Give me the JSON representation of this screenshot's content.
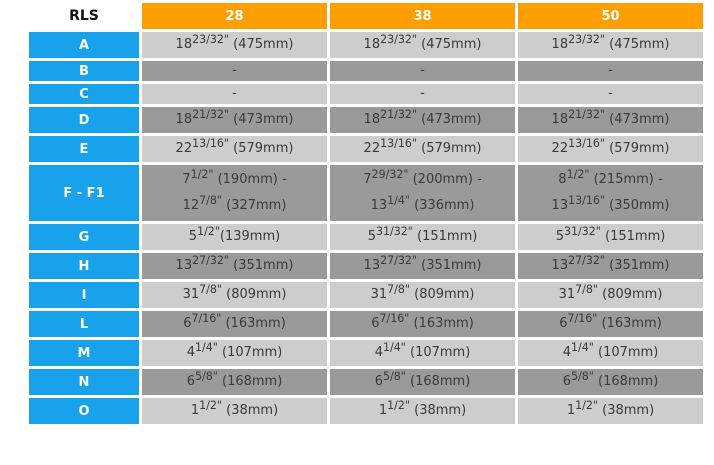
{
  "colors": {
    "header_orange": "#FF9E00",
    "label_blue": "#18A2EC",
    "row_light": "#CDCDCD",
    "row_dark": "#9A9A9A",
    "cell_text": "#3A3A3A"
  },
  "table": {
    "header": {
      "rls_label": "RLS",
      "columns": [
        "28",
        "38",
        "50"
      ]
    },
    "rows": [
      {
        "label": "A",
        "shade": "light",
        "cells": [
          "18|23/32\"| (475mm)",
          "18|23/32\"| (475mm)",
          "18|23/32\"| (475mm)"
        ]
      },
      {
        "label": "B",
        "shade": "dark",
        "cells": [
          "-",
          "-",
          "-"
        ]
      },
      {
        "label": "C",
        "shade": "light",
        "cells": [
          "-",
          "-",
          "-"
        ]
      },
      {
        "label": "D",
        "shade": "dark",
        "cells": [
          "18|21/32\"| (473mm)",
          "18|21/32\"| (473mm)",
          "18|21/32\"| (473mm)"
        ]
      },
      {
        "label": "E",
        "shade": "light",
        "cells": [
          "22|13/16\"| (579mm)",
          "22|13/16\"| (579mm)",
          "22|13/16\"| (579mm)"
        ]
      },
      {
        "label": "F - F1",
        "shade": "dark",
        "cells": [
          [
            "7|1/2\"| (190mm) -",
            "12|7/8\"| (327mm)"
          ],
          [
            "7|29/32\"| (200mm) -",
            "13|1/4\"| (336mm)"
          ],
          [
            "8|1/2\"| (215mm) -",
            "13|13/16\"| (350mm)"
          ]
        ]
      },
      {
        "label": "G",
        "shade": "light",
        "cells": [
          "5|1/2\"|(139mm)",
          "5|31/32\"| (151mm)",
          "5|31/32\"| (151mm)"
        ]
      },
      {
        "label": "H",
        "shade": "dark",
        "cells": [
          "13|27/32\"| (351mm)",
          "13|27/32\"| (351mm)",
          "13|27/32\"| (351mm)"
        ]
      },
      {
        "label": "I",
        "shade": "light",
        "cells": [
          "31|7/8\"| (809mm)",
          "31|7/8\"| (809mm)",
          "31|7/8\"| (809mm)"
        ]
      },
      {
        "label": "L",
        "shade": "dark",
        "cells": [
          "6|7/16\"| (163mm)",
          "6|7/16\"| (163mm)",
          "6|7/16\"| (163mm)"
        ]
      },
      {
        "label": "M",
        "shade": "light",
        "cells": [
          "4|1/4\"| (107mm)",
          "4|1/4\"| (107mm)",
          "4|1/4\"| (107mm)"
        ]
      },
      {
        "label": "N",
        "shade": "dark",
        "cells": [
          "6|5/8\"| (168mm)",
          "6|5/8\"| (168mm)",
          "6|5/8\"| (168mm)"
        ]
      },
      {
        "label": "O",
        "shade": "light",
        "cells": [
          "1|1/2\"| (38mm)",
          "1|1/2\"| (38mm)",
          "1|1/2\"| (38mm)"
        ]
      }
    ]
  },
  "chart_data": {
    "type": "table",
    "title": "RLS dimensions by size",
    "columns": [
      "RLS",
      "28",
      "38",
      "50"
    ],
    "rows": [
      [
        "A",
        "18 23/32\" (475mm)",
        "18 23/32\" (475mm)",
        "18 23/32\" (475mm)"
      ],
      [
        "B",
        "-",
        "-",
        "-"
      ],
      [
        "C",
        "-",
        "-",
        "-"
      ],
      [
        "D",
        "18 21/32\" (473mm)",
        "18 21/32\" (473mm)",
        "18 21/32\" (473mm)"
      ],
      [
        "E",
        "22 13/16\" (579mm)",
        "22 13/16\" (579mm)",
        "22 13/16\" (579mm)"
      ],
      [
        "F - F1",
        "7 1/2\" (190mm) - 12 7/8\" (327mm)",
        "7 29/32\" (200mm) - 13 1/4\" (336mm)",
        "8 1/2\" (215mm) - 13 13/16\" (350mm)"
      ],
      [
        "G",
        "5 1/2\" (139mm)",
        "5 31/32\" (151mm)",
        "5 31/32\" (151mm)"
      ],
      [
        "H",
        "13 27/32\" (351mm)",
        "13 27/32\" (351mm)",
        "13 27/32\" (351mm)"
      ],
      [
        "I",
        "31 7/8\" (809mm)",
        "31 7/8\" (809mm)",
        "31 7/8\" (809mm)"
      ],
      [
        "L",
        "6 7/16\" (163mm)",
        "6 7/16\" (163mm)",
        "6 7/16\" (163mm)"
      ],
      [
        "M",
        "4 1/4\" (107mm)",
        "4 1/4\" (107mm)",
        "4 1/4\" (107mm)"
      ],
      [
        "N",
        "6 5/8\" (168mm)",
        "6 5/8\" (168mm)",
        "6 5/8\" (168mm)"
      ],
      [
        "O",
        "1 1/2\" (38mm)",
        "1 1/2\" (38mm)",
        "1 1/2\" (38mm)"
      ]
    ]
  }
}
